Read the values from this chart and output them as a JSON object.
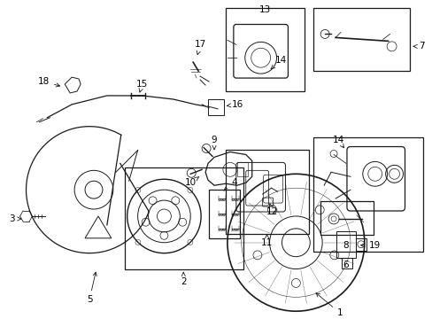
{
  "background_color": "#ffffff",
  "line_color": "#1a1a1a",
  "figure_width": 4.89,
  "figure_height": 3.6,
  "dpi": 100
}
